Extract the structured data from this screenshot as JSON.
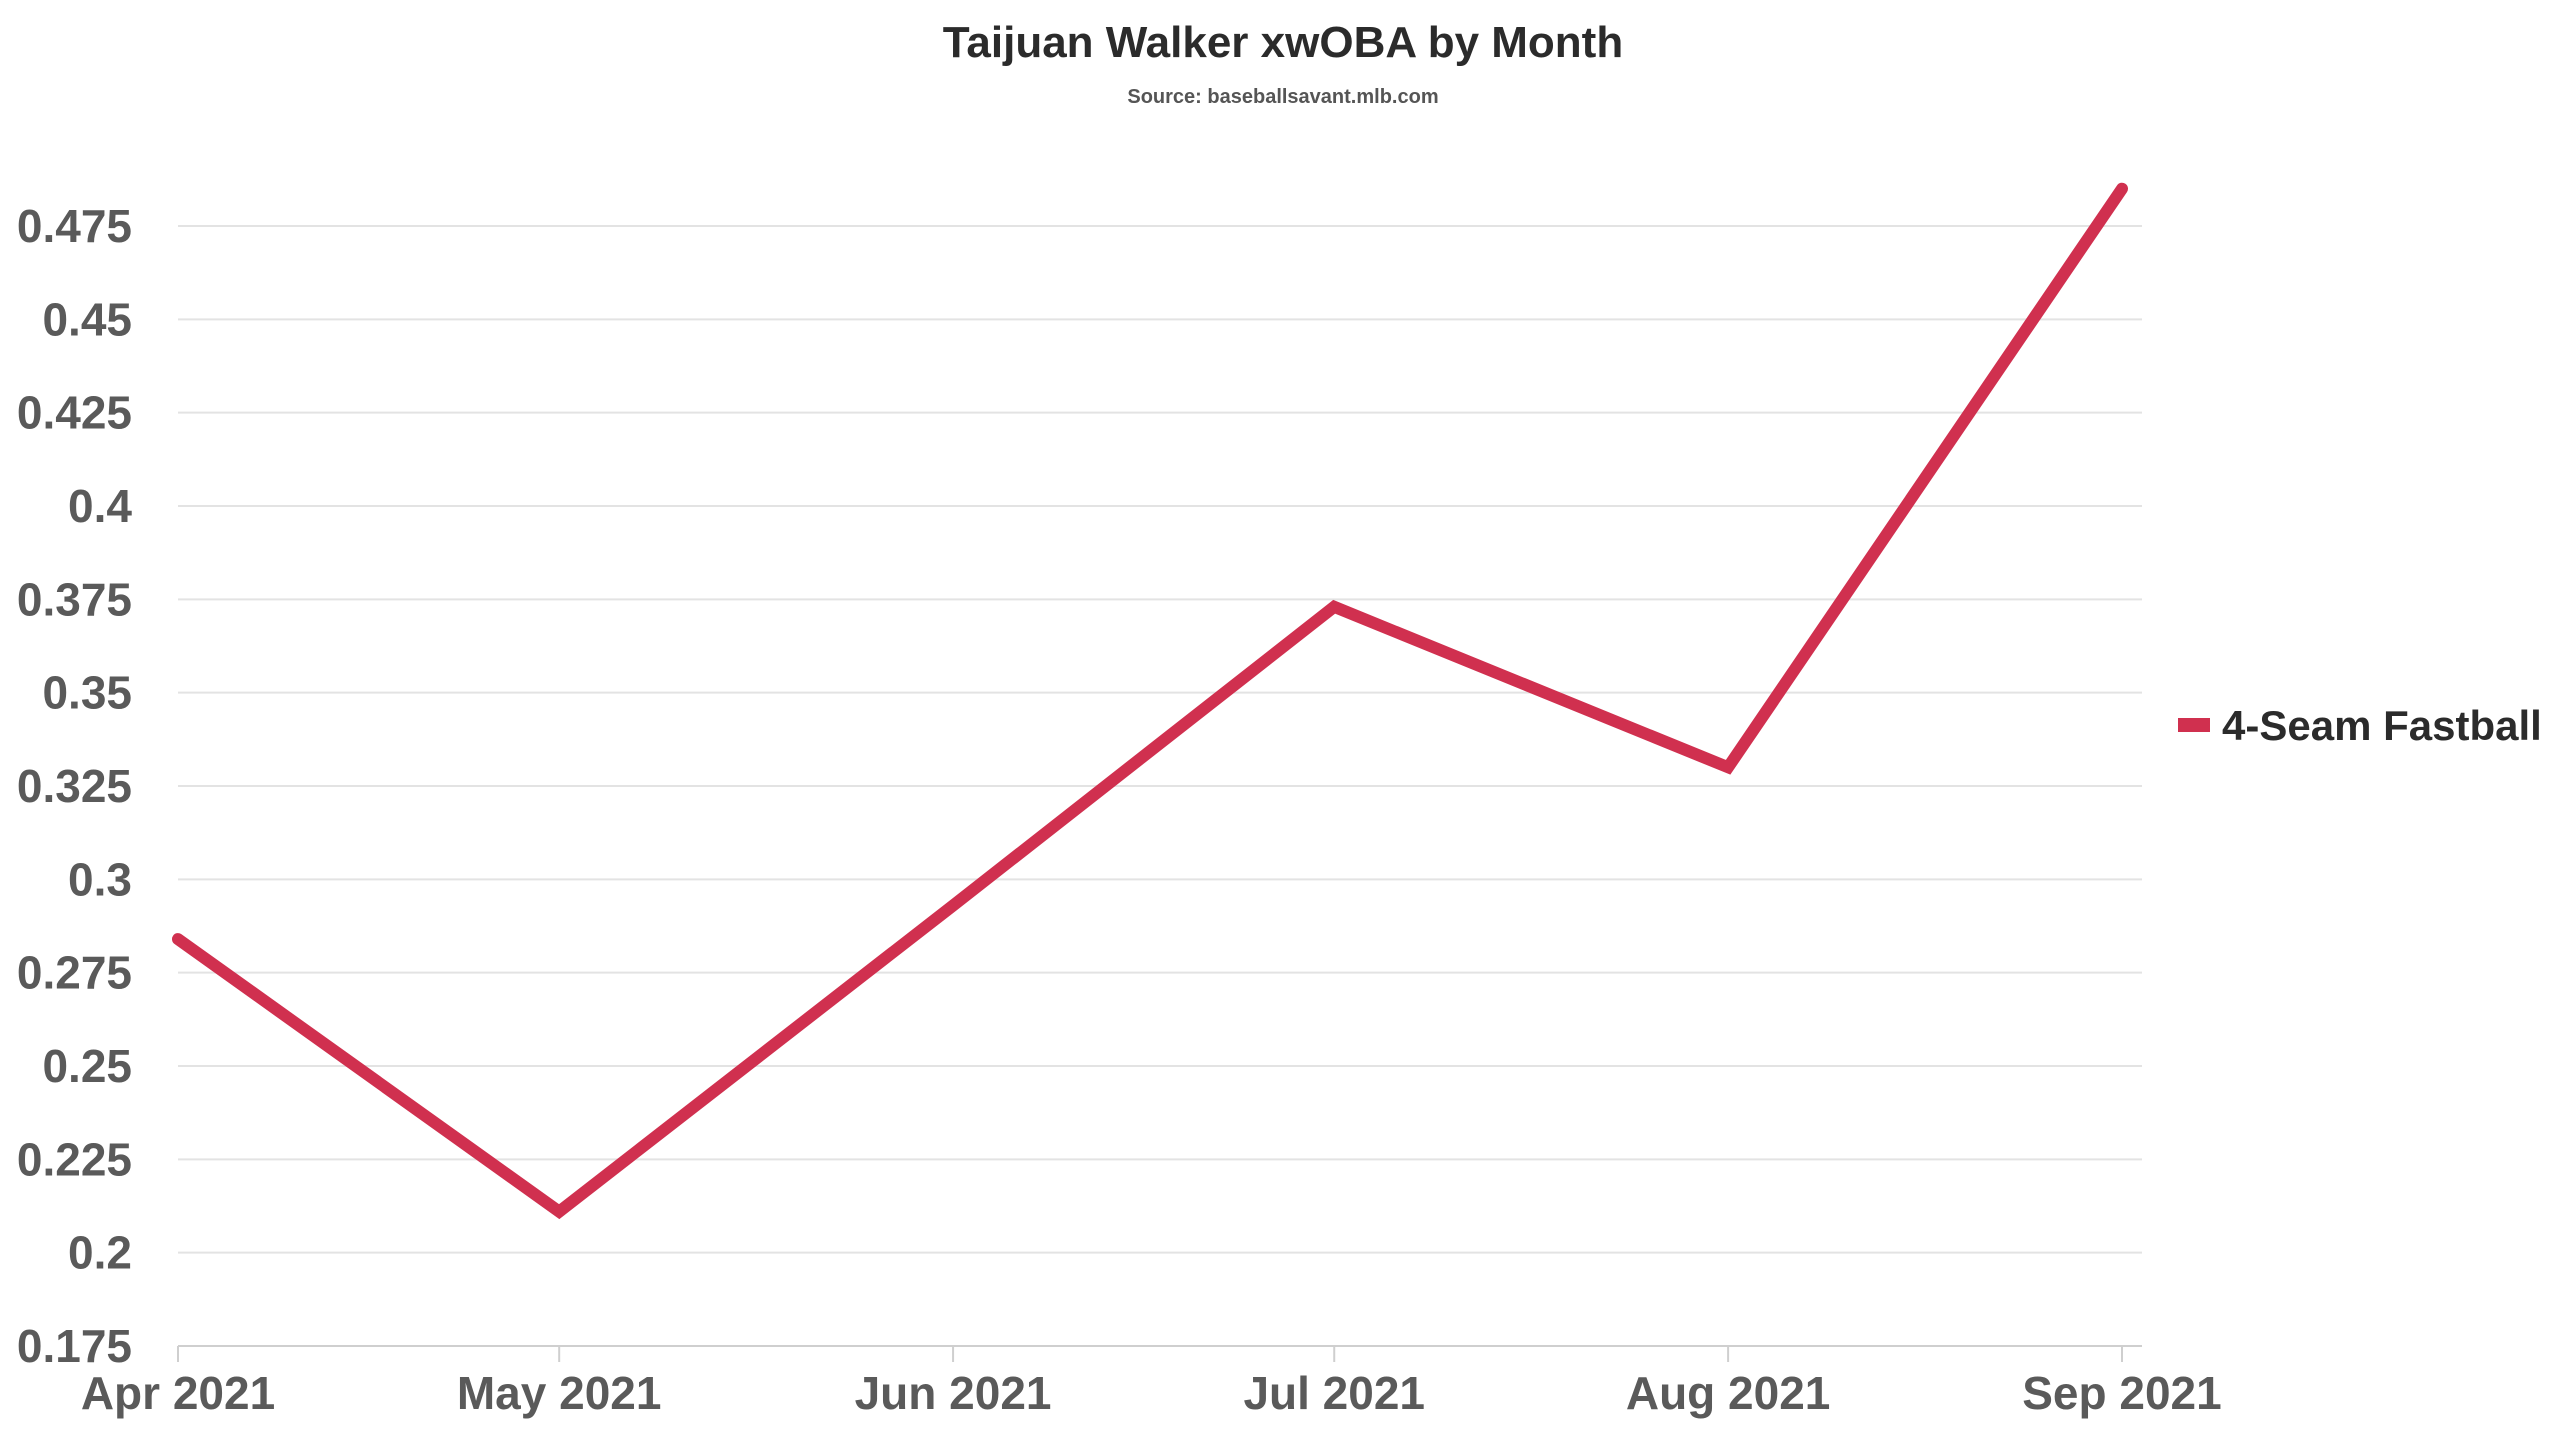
{
  "chart_data": {
    "type": "line",
    "title": "Taijuan Walker xwOBA by Month",
    "subtitle": "Source: baseballsavant.mlb.com",
    "xlabel": "",
    "ylabel": "",
    "categories": [
      "Apr 2021",
      "May 2021",
      "Jun 2021",
      "Jul 2021",
      "Aug 2021",
      "Sep 2021"
    ],
    "x_dates": [
      "2021-04-01",
      "2021-05-01",
      "2021-06-01",
      "2021-07-01",
      "2021-08-01",
      "2021-09-01"
    ],
    "series": [
      {
        "name": "4-Seam Fastball",
        "color": "#d0304f",
        "values": [
          0.284,
          0.211,
          0.293,
          0.373,
          0.33,
          0.485
        ]
      }
    ],
    "ylim": [
      0.175,
      0.49
    ],
    "yticks": [
      0.175,
      0.2,
      0.225,
      0.25,
      0.275,
      0.3,
      0.325,
      0.35,
      0.375,
      0.4,
      0.425,
      0.45,
      0.475
    ],
    "ytick_labels": [
      "0.175",
      "0.2",
      "0.225",
      "0.25",
      "0.275",
      "0.3",
      "0.325",
      "0.35",
      "0.375",
      "0.4",
      "0.425",
      "0.45",
      "0.475"
    ],
    "grid": true,
    "legend_position": "right"
  }
}
